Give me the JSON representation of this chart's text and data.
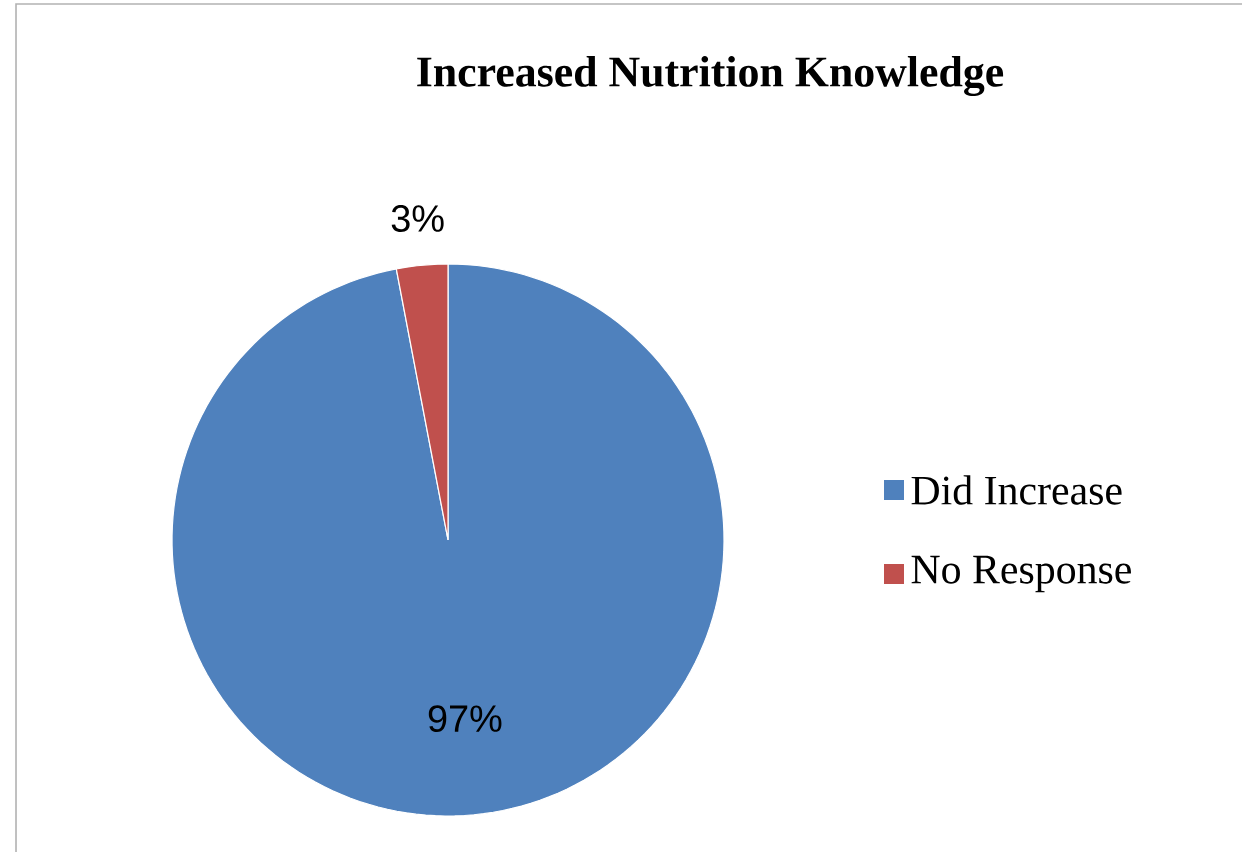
{
  "chart_data": {
    "type": "pie",
    "title": "Increased Nutrition Knowledge",
    "categories": [
      "Did Increase",
      "No Response"
    ],
    "values": [
      97,
      3
    ],
    "colors": [
      "#4f81bd",
      "#c0504d"
    ],
    "value_labels": [
      "97%",
      "3%"
    ],
    "legend": "right"
  }
}
